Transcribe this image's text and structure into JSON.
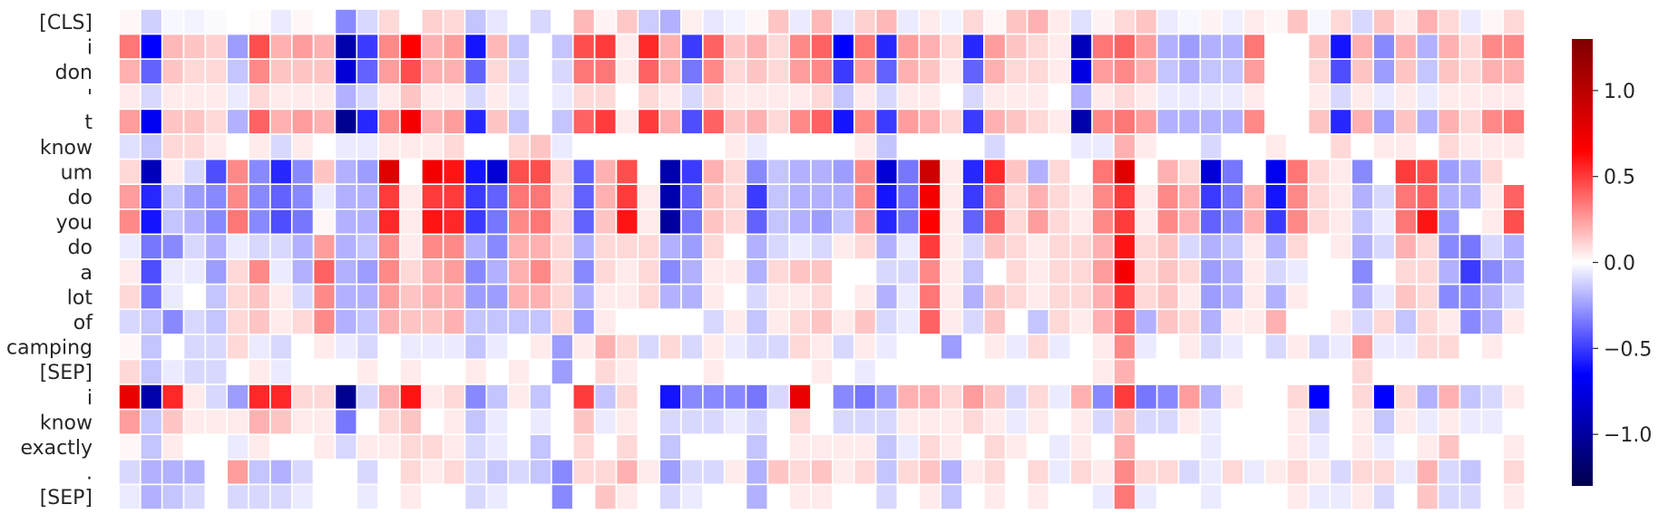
{
  "chart_data": {
    "type": "heatmap",
    "title": "",
    "xlabel": "",
    "ylabel": "",
    "row_labels": [
      "[CLS]",
      "i",
      "don",
      "'",
      "t",
      "know",
      "um",
      "do",
      "you",
      "do",
      "a",
      "lot",
      "of",
      "camping",
      "[SEP]",
      "i",
      "know",
      "exactly",
      ".",
      "[SEP]"
    ],
    "num_columns": 65,
    "colormap": [
      "#00004c",
      "#0000ff",
      "#ffffff",
      "#ff0000",
      "#7f0000"
    ],
    "vmin": -1.3,
    "vmax": 1.3,
    "colorbar": {
      "ticks": [
        1.0,
        0.5,
        0.0,
        -0.5,
        -1.0
      ],
      "tick_labels": [
        "1.0",
        "0.5",
        "0.0",
        "−0.5",
        "−1.0"
      ]
    },
    "values": [
      [
        0.02,
        -0.12,
        -0.02,
        -0.03,
        -0.01,
        0,
        0.01,
        -0.05,
        0.02,
        0,
        -0.3,
        -0.1,
        0.1,
        0,
        0.12,
        0.1,
        -0.15,
        -0.06,
        0,
        -0.1,
        0,
        0.18,
        0.03,
        0.14,
        -0.13,
        -0.2,
        0.04,
        -0.06,
        -0.03,
        0.02,
        0.15,
        -0.05,
        0.18,
        -0.06,
        0.12,
        0.18,
        -0.05,
        0.05,
        -0.03,
        0.1,
        0.02,
        0.15,
        0.2,
        0.05,
        -0.08,
        0.03,
        0.1,
        0.15,
        -0.05,
        -0.02,
        0.03,
        -0.04,
        0.05,
        0.02,
        0.15,
        -0.02,
        0.1,
        -0.1,
        0.15,
        0.05,
        0.2,
        0.1,
        -0.05,
        0.02,
        0.1
      ],
      [
        0.35,
        -0.65,
        0.18,
        0.15,
        0.12,
        -0.25,
        0.45,
        0.2,
        0.25,
        0.2,
        -0.95,
        -0.5,
        0.3,
        0.65,
        0.2,
        0.25,
        -0.6,
        0.18,
        -0.15,
        0,
        -0.15,
        0.45,
        0.5,
        0.05,
        0.55,
        0.2,
        -0.5,
        0.4,
        0.15,
        0.2,
        0.1,
        0.3,
        0.4,
        -0.65,
        0.35,
        -0.55,
        0.25,
        0.2,
        0.1,
        -0.55,
        0.25,
        0.15,
        0.1,
        0.05,
        -0.9,
        0.35,
        0.4,
        0.25,
        -0.2,
        -0.25,
        -0.2,
        -0.2,
        0.35,
        0,
        0,
        0.15,
        -0.6,
        0.2,
        -0.3,
        0.2,
        -0.2,
        0.2,
        0.1,
        0.3,
        0.3
      ],
      [
        0.2,
        -0.4,
        0.15,
        0.1,
        0.1,
        -0.15,
        0.3,
        0.15,
        0.15,
        0.15,
        -0.8,
        -0.4,
        0.25,
        0.45,
        0.2,
        0.2,
        -0.4,
        0.1,
        -0.1,
        0,
        -0.1,
        0.35,
        0.35,
        0.05,
        0.4,
        0.2,
        -0.35,
        0.3,
        0.1,
        0.15,
        0.1,
        0.25,
        0.3,
        -0.5,
        0.25,
        -0.4,
        0.2,
        0.15,
        0.05,
        -0.4,
        0.2,
        0.1,
        0.1,
        0.05,
        -0.75,
        0.25,
        0.3,
        0.2,
        -0.15,
        -0.2,
        -0.15,
        -0.15,
        0.25,
        0,
        0,
        0.1,
        -0.45,
        0.15,
        -0.25,
        0.15,
        -0.15,
        0.15,
        0.1,
        0.2,
        0.2
      ],
      [
        0.05,
        -0.1,
        0.05,
        0.05,
        0.05,
        -0.05,
        0.1,
        0.05,
        0.05,
        0.05,
        -0.2,
        -0.1,
        0.05,
        0.15,
        0.05,
        0.05,
        -0.1,
        0.05,
        -0.05,
        0,
        -0.05,
        0.1,
        0.1,
        0,
        0.1,
        0.05,
        -0.1,
        0.1,
        0.05,
        0.05,
        0.05,
        0.05,
        0.1,
        -0.15,
        0.05,
        -0.1,
        0.05,
        0.05,
        0,
        -0.1,
        0.05,
        0.05,
        0.05,
        0,
        -0.2,
        0.05,
        0.1,
        0.05,
        -0.05,
        -0.05,
        -0.05,
        -0.05,
        0.05,
        0,
        0,
        0.05,
        -0.1,
        0.05,
        -0.05,
        0.05,
        -0.05,
        0.05,
        0.05,
        0.05,
        0.05
      ],
      [
        0.25,
        -0.7,
        0.15,
        0.15,
        0.1,
        -0.2,
        0.4,
        0.2,
        0.25,
        0.2,
        -1.05,
        -0.55,
        0.3,
        0.7,
        0.2,
        0.25,
        -0.55,
        0.15,
        -0.15,
        0,
        -0.15,
        0.4,
        0.5,
        0.05,
        0.5,
        0.2,
        -0.45,
        0.4,
        0.15,
        0.2,
        0.1,
        0.3,
        0.4,
        -0.6,
        0.3,
        -0.5,
        0.25,
        0.2,
        0.1,
        -0.5,
        0.2,
        0.15,
        0.1,
        0.05,
        -0.95,
        0.3,
        0.35,
        0.25,
        -0.2,
        -0.2,
        -0.2,
        -0.2,
        0.3,
        0,
        0,
        0.15,
        -0.55,
        0.2,
        -0.25,
        0.15,
        -0.2,
        0.2,
        0.1,
        0.3,
        0.35
      ],
      [
        -0.08,
        -0.15,
        0.1,
        0.1,
        0.05,
        0,
        0.05,
        -0.1,
        0.05,
        0,
        -0.05,
        -0.05,
        0.05,
        0.05,
        0.05,
        0.1,
        0,
        0,
        0.1,
        0.15,
        -0.05,
        0,
        0,
        0,
        0,
        0,
        0,
        0,
        0.05,
        -0.05,
        0,
        0,
        0,
        0,
        0.05,
        -0.15,
        0,
        0,
        0,
        0,
        -0.1,
        0,
        0,
        0,
        -0.05,
        -0.05,
        0.2,
        0.05,
        0,
        0,
        -0.1,
        0,
        0,
        0.05,
        0,
        0,
        0.1,
        0,
        0.05,
        0.05,
        0,
        0.1,
        0.05,
        0.05,
        0.05
      ],
      [
        0.1,
        -0.9,
        0.05,
        -0.1,
        -0.45,
        0.3,
        -0.3,
        -0.55,
        -0.3,
        0.15,
        -0.2,
        -0.25,
        0.8,
        0,
        0.7,
        0.6,
        -0.6,
        -0.8,
        0.45,
        0.45,
        0.1,
        -0.4,
        0.2,
        0.45,
        0,
        -0.95,
        -0.5,
        0.2,
        0.1,
        -0.3,
        -0.15,
        -0.2,
        -0.2,
        -0.25,
        0.3,
        -0.8,
        -0.35,
        0.9,
        0.05,
        -0.55,
        0.55,
        0.15,
        -0.2,
        0.1,
        0,
        0.35,
        0.8,
        0,
        0.2,
        0.1,
        -0.8,
        -0.35,
        0,
        -0.7,
        0.35,
        0.1,
        0.05,
        -0.3,
        0,
        0.5,
        0.45,
        -0.25,
        -0.2,
        0.1,
        0
      ],
      [
        0.25,
        -0.55,
        -0.15,
        -0.25,
        -0.3,
        0.3,
        -0.3,
        -0.4,
        -0.3,
        -0.05,
        -0.2,
        -0.2,
        0.5,
        0.05,
        0.5,
        0.5,
        -0.5,
        -0.4,
        0.35,
        0.35,
        0.1,
        -0.4,
        0.2,
        0.5,
        0.05,
        -0.95,
        -0.4,
        0.15,
        0.1,
        -0.5,
        -0.15,
        -0.2,
        -0.2,
        -0.2,
        0.3,
        -0.6,
        -0.35,
        0.7,
        0.05,
        -0.5,
        0.35,
        0.1,
        0.2,
        0.1,
        0.05,
        0.3,
        0.5,
        0.05,
        0.3,
        0.2,
        -0.5,
        -0.35,
        0.2,
        -0.6,
        0.3,
        0.1,
        0.05,
        -0.2,
        -0.1,
        0.35,
        0.4,
        -0.2,
        -0.2,
        0.05,
        0.4
      ],
      [
        0.3,
        -0.6,
        -0.15,
        -0.2,
        -0.3,
        0.35,
        -0.3,
        -0.45,
        -0.35,
        0.02,
        -0.2,
        -0.2,
        0.55,
        0.05,
        0.6,
        0.55,
        -0.5,
        -0.35,
        0.3,
        0.35,
        0.1,
        -0.4,
        0.15,
        0.6,
        0.05,
        -1.0,
        -0.35,
        0.15,
        0.1,
        -0.4,
        -0.15,
        -0.2,
        -0.25,
        -0.15,
        0.25,
        -0.55,
        -0.35,
        0.65,
        0.05,
        -0.4,
        0.4,
        0.1,
        0.25,
        0.1,
        0.05,
        0.3,
        0.5,
        0.05,
        0.3,
        0.2,
        -0.4,
        -0.3,
        0.2,
        -0.5,
        0.3,
        0.1,
        0.05,
        -0.15,
        -0.05,
        0.35,
        0.6,
        -0.25,
        0,
        0.05,
        0.45
      ],
      [
        -0.05,
        -0.35,
        -0.3,
        -0.1,
        -0.2,
        -0.05,
        -0.1,
        -0.1,
        -0.2,
        0.25,
        -0.2,
        -0.15,
        0.3,
        0.05,
        0.3,
        0.3,
        -0.2,
        -0.3,
        0.2,
        0.2,
        0.1,
        -0.2,
        0.1,
        0.1,
        0.1,
        -0.2,
        -0.25,
        0.1,
        0,
        -0.2,
        -0.1,
        -0.05,
        -0.1,
        0.05,
        0.1,
        -0.2,
        -0.05,
        0.5,
        0.05,
        -0.1,
        0.15,
        0.1,
        0.05,
        0.1,
        0.1,
        0.2,
        0.6,
        0.1,
        0.15,
        -0.1,
        -0.2,
        -0.15,
        0.05,
        -0.2,
        0.1,
        0,
        0.05,
        -0.2,
        -0.1,
        0.2,
        0.1,
        -0.3,
        -0.35,
        -0.1,
        -0.2
      ],
      [
        0.05,
        -0.45,
        -0.05,
        -0.05,
        -0.25,
        0.1,
        0.3,
        -0.05,
        -0.2,
        0.4,
        -0.2,
        -0.25,
        0.3,
        0.1,
        0.2,
        0.25,
        -0.3,
        -0.2,
        0.2,
        0.3,
        0.1,
        -0.3,
        0.1,
        0.05,
        0.1,
        -0.3,
        -0.2,
        0.05,
        0.05,
        -0.2,
        0.1,
        0.15,
        0.15,
        0,
        0,
        -0.1,
        -0.1,
        0.3,
        0.05,
        -0.15,
        0,
        0.1,
        0.05,
        0.1,
        0.1,
        0.25,
        0.7,
        0.1,
        0.15,
        0.1,
        -0.25,
        -0.2,
        0.05,
        -0.1,
        -0.05,
        0,
        0,
        -0.3,
        0,
        0.1,
        0.1,
        -0.2,
        -0.5,
        -0.3,
        -0.2
      ],
      [
        0.1,
        -0.35,
        -0.05,
        0,
        -0.15,
        0.1,
        0.15,
        0.05,
        -0.1,
        0.3,
        -0.2,
        -0.2,
        0.25,
        0.15,
        0.2,
        0.2,
        -0.25,
        -0.25,
        0.2,
        0.2,
        0.1,
        -0.2,
        0.05,
        0.05,
        0.1,
        -0.2,
        -0.2,
        0.05,
        0,
        -0.1,
        0.05,
        0.05,
        0.1,
        0,
        0.05,
        -0.2,
        -0.05,
        0.35,
        0.05,
        -0.2,
        0.15,
        0.1,
        0.05,
        0.1,
        0.1,
        0.2,
        0.5,
        0.1,
        0.15,
        0.05,
        -0.25,
        -0.2,
        0.05,
        -0.2,
        0.05,
        0,
        0,
        -0.2,
        -0.05,
        0.15,
        0.1,
        -0.3,
        -0.3,
        -0.2,
        -0.1
      ],
      [
        -0.1,
        -0.15,
        -0.3,
        -0.1,
        -0.15,
        0.1,
        0.15,
        0.05,
        0.1,
        0.3,
        -0.2,
        -0.15,
        0.2,
        0.15,
        0.15,
        0.2,
        -0.15,
        -0.15,
        -0.15,
        -0.15,
        0.1,
        -0.25,
        0.05,
        0,
        0,
        0,
        0,
        -0.1,
        0.05,
        -0.15,
        0.05,
        0.1,
        0.15,
        0.05,
        0.15,
        -0.1,
        -0.05,
        0.4,
        0.05,
        -0.1,
        0.15,
        0,
        -0.15,
        0.1,
        0.05,
        0.2,
        0.4,
        -0.2,
        0.15,
        0.1,
        -0.2,
        0.05,
        0.05,
        0.2,
        0,
        0,
        0.05,
        -0.1,
        0.1,
        -0.15,
        0.1,
        0.05,
        -0.3,
        -0.2,
        0.05
      ],
      [
        0.02,
        -0.15,
        0,
        -0.1,
        -0.1,
        0.1,
        -0.05,
        -0.1,
        0,
        0.05,
        -0.05,
        -0.1,
        0,
        -0.05,
        -0.05,
        -0.05,
        -0.15,
        -0.05,
        0,
        0.05,
        -0.25,
        0.05,
        0.2,
        0.1,
        -0.1,
        0.1,
        -0.1,
        0.05,
        -0.05,
        -0.1,
        -0.1,
        0.1,
        0.05,
        -0.1,
        0.05,
        -0.05,
        0,
        0,
        -0.25,
        0,
        0.05,
        -0.05,
        0.1,
        -0.05,
        0,
        0.05,
        0.3,
        -0.05,
        0,
        0.05,
        -0.1,
        -0.05,
        0,
        -0.1,
        0.05,
        -0.1,
        -0.05,
        0.25,
        -0.05,
        -0.05,
        0.1,
        0.1,
        0,
        0.05,
        0
      ],
      [
        0.1,
        -0.15,
        -0.05,
        -0.1,
        -0.1,
        0,
        0.05,
        -0.05,
        0,
        0,
        0,
        0.05,
        0,
        0.05,
        0,
        0,
        0.05,
        0,
        0.05,
        0,
        -0.25,
        0,
        0.1,
        0.05,
        0,
        0,
        0,
        0.05,
        0,
        0,
        0,
        0,
        0.05,
        0,
        -0.05,
        0,
        0,
        0,
        0,
        0,
        0,
        0,
        0,
        0,
        0,
        0.05,
        0.2,
        0,
        0,
        0,
        0,
        0,
        0,
        0,
        0,
        0,
        0,
        0.1,
        0,
        0,
        0,
        0,
        0,
        0,
        0
      ],
      [
        0.75,
        -0.95,
        0.55,
        0.05,
        -0.1,
        -0.25,
        0.55,
        0.55,
        0.1,
        0.1,
        -1.05,
        -0.1,
        0.2,
        0.6,
        0.05,
        0.1,
        -0.3,
        -0.15,
        0.05,
        -0.15,
        0,
        0.5,
        -0.15,
        0.1,
        0,
        -0.6,
        -0.3,
        -0.3,
        -0.3,
        -0.35,
        -0.1,
        0.75,
        0,
        -0.3,
        -0.35,
        -0.25,
        0.2,
        0.2,
        0.1,
        0.25,
        0.15,
        -0.1,
        0.1,
        -0.05,
        0.2,
        -0.3,
        0.5,
        -0.35,
        -0.3,
        0.25,
        -0.2,
        0.05,
        0,
        0,
        0.1,
        -0.65,
        0,
        0.1,
        -0.65,
        0.1,
        -0.2,
        0.2,
        -0.15,
        -0.1,
        0.05
      ],
      [
        0.25,
        -0.15,
        0.15,
        0.05,
        0.05,
        0.05,
        0.2,
        0.15,
        0.05,
        0.05,
        -0.35,
        0,
        0.1,
        0.15,
        0,
        0.05,
        -0.15,
        -0.05,
        0,
        -0.05,
        0,
        0.15,
        -0.05,
        0.05,
        0,
        -0.1,
        -0.1,
        -0.1,
        -0.05,
        -0.1,
        0,
        0.1,
        0,
        -0.1,
        -0.1,
        -0.1,
        0.05,
        0.05,
        0.05,
        0.1,
        0.05,
        -0.05,
        0.05,
        0,
        0.05,
        -0.1,
        0.15,
        -0.1,
        -0.1,
        0.05,
        -0.05,
        0,
        0,
        0,
        0.05,
        -0.1,
        0,
        0.05,
        -0.15,
        0.05,
        -0.05,
        0.05,
        -0.05,
        -0.05,
        0
      ],
      [
        0.02,
        -0.15,
        0.05,
        0,
        0,
        -0.05,
        0.05,
        0,
        0,
        0.05,
        -0.1,
        0.05,
        0.05,
        0.1,
        0.1,
        0.05,
        -0.1,
        -0.05,
        0,
        -0.15,
        0,
        0.1,
        0,
        0.1,
        0,
        -0.15,
        0,
        0,
        0,
        -0.15,
        0,
        0.05,
        0.05,
        0.05,
        0.05,
        -0.15,
        -0.05,
        0.1,
        0.05,
        0,
        0.1,
        0.05,
        0,
        -0.05,
        0.05,
        0,
        0.2,
        0,
        0,
        0,
        -0.05,
        0,
        0,
        0,
        0.05,
        -0.05,
        0,
        0.05,
        -0.05,
        0,
        0.05,
        0.15,
        0,
        0,
        0.05
      ],
      [
        -0.1,
        -0.2,
        -0.2,
        -0.2,
        0,
        0.25,
        -0.15,
        -0.2,
        -0.1,
        0,
        0,
        -0.1,
        0,
        0.1,
        0.05,
        0.1,
        -0.1,
        -0.15,
        -0.1,
        -0.15,
        -0.3,
        0.1,
        0.1,
        0.2,
        0.05,
        -0.25,
        -0.1,
        -0.1,
        0.05,
        -0.2,
        0.15,
        0.1,
        0.15,
        0.05,
        0.1,
        -0.15,
        0.1,
        0.15,
        -0.2,
        0.05,
        0.1,
        0,
        0.1,
        -0.05,
        0.1,
        0.05,
        0.3,
        0.1,
        0.1,
        -0.1,
        -0.05,
        0.1,
        -0.05,
        0.05,
        0.1,
        0.05,
        -0.1,
        0.1,
        0.1,
        -0.05,
        0.2,
        -0.1,
        -0.15,
        0,
        0.1
      ],
      [
        -0.05,
        -0.2,
        -0.15,
        -0.1,
        0,
        -0.1,
        -0.1,
        -0.1,
        -0.05,
        0,
        0,
        -0.05,
        0,
        0.05,
        0,
        0,
        -0.1,
        -0.05,
        0,
        0,
        -0.3,
        0,
        0.15,
        0.05,
        0,
        -0.1,
        -0.05,
        0,
        0,
        -0.2,
        0,
        0.05,
        0.05,
        0,
        0,
        -0.1,
        0,
        0.05,
        -0.15,
        0,
        0.05,
        0,
        0.05,
        0,
        0,
        -0.05,
        0.35,
        -0.05,
        0,
        0,
        -0.05,
        0,
        0,
        0,
        0.05,
        -0.05,
        -0.05,
        0.05,
        -0.1,
        0,
        0.15,
        -0.1,
        -0.1,
        0,
        0.05
      ]
    ]
  }
}
